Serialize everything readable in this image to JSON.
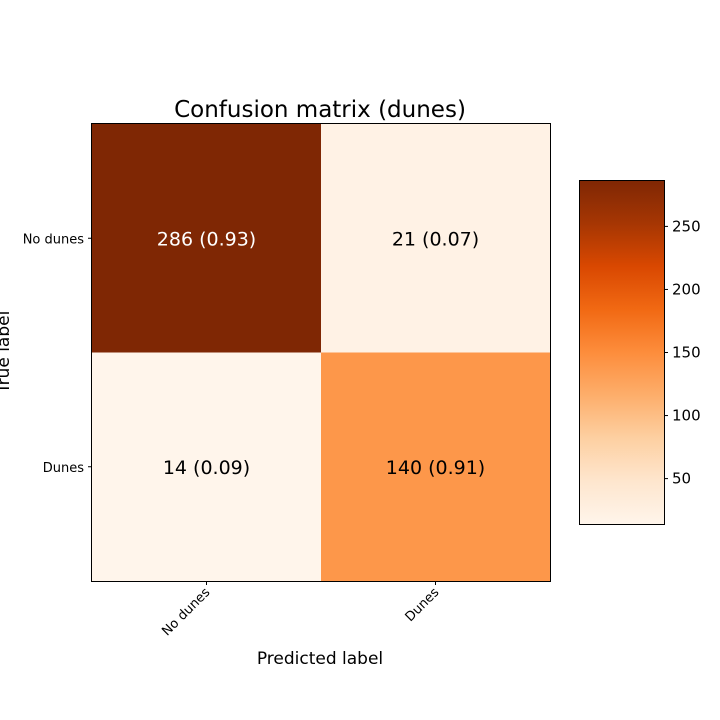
{
  "chart_data": {
    "type": "heatmap",
    "title": "Confusion matrix (dunes)",
    "xlabel": "Predicted label",
    "ylabel": "True label",
    "x_categories": [
      "No dunes",
      "Dunes"
    ],
    "y_categories": [
      "No dunes",
      "Dunes"
    ],
    "values": [
      [
        286,
        21
      ],
      [
        14,
        140
      ]
    ],
    "fractions": [
      [
        0.93,
        0.07
      ],
      [
        0.09,
        0.91
      ]
    ],
    "cell_labels": [
      [
        "286 (0.93)",
        "21 (0.07)"
      ],
      [
        "14 (0.09)",
        "140 (0.91)"
      ]
    ],
    "colormap": "Oranges",
    "colormap_stops": [
      "#fff5eb",
      "#fee6ce",
      "#fdd0a2",
      "#fdae6b",
      "#fd8d3c",
      "#f16913",
      "#d94801",
      "#a63603",
      "#7f2704"
    ],
    "colorbar": {
      "range": [
        14,
        286
      ],
      "ticks": [
        50,
        100,
        150,
        200,
        250
      ],
      "tick_labels": [
        "50",
        "100",
        "150",
        "200",
        "250"
      ]
    },
    "grid": false
  }
}
